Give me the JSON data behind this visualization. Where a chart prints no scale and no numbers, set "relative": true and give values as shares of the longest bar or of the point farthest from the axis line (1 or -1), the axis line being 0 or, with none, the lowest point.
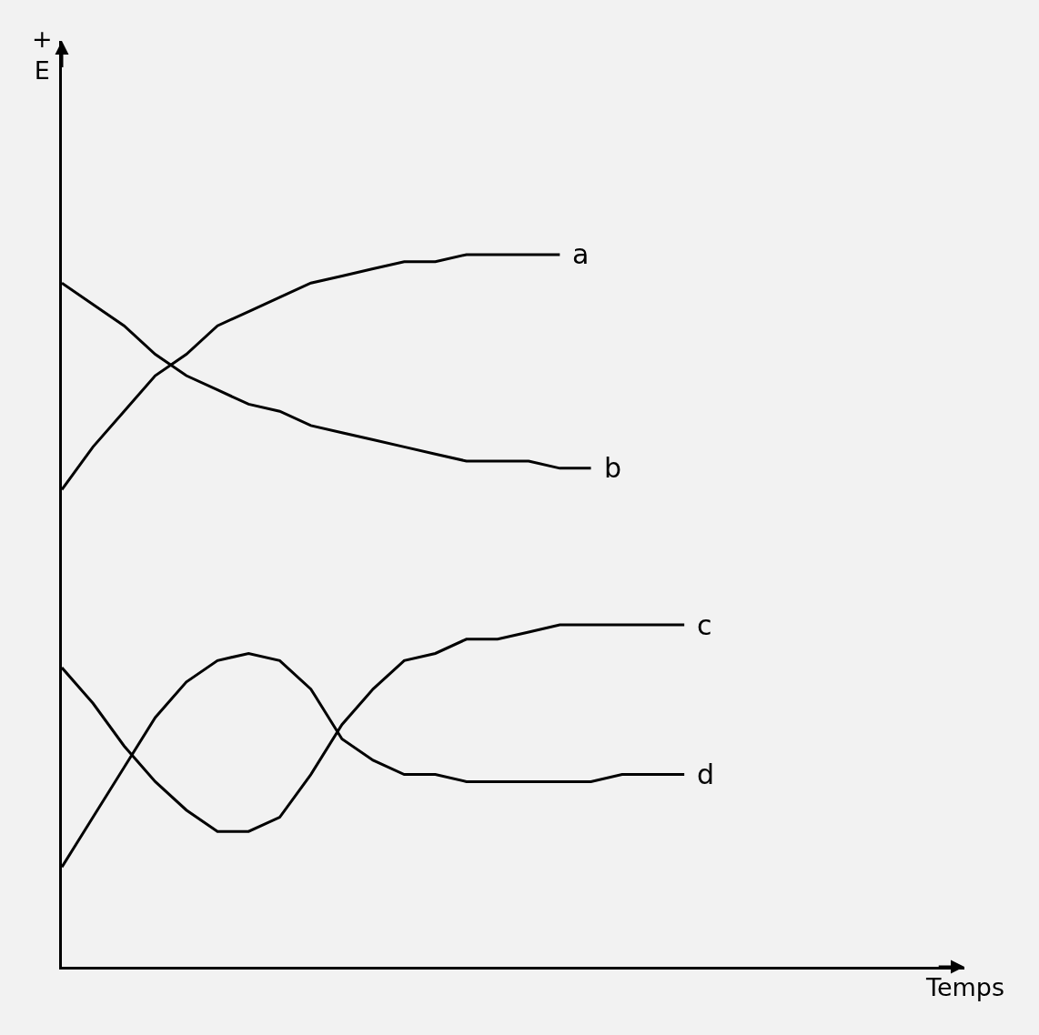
{
  "chart_data": {
    "type": "line",
    "relative": true,
    "annotations": [
      "+\nE",
      "Temps"
    ],
    "categories": [
      null,
      null,
      null,
      null,
      null,
      null,
      null,
      null,
      null,
      null,
      null,
      null,
      null,
      null,
      null,
      null,
      null,
      null,
      null,
      null,
      null
    ],
    "series": [
      {
        "name": "a",
        "color": "#000000",
        "values": [
          0.67,
          0.73,
          0.78,
          0.83,
          0.86,
          0.9,
          0.92,
          0.94,
          0.96,
          0.97,
          0.98,
          0.99,
          0.99,
          1,
          1,
          1,
          1,
          null,
          null,
          null,
          null
        ]
      },
      {
        "name": "b",
        "color": "#000000",
        "values": [
          0.96,
          0.93,
          0.9,
          0.86,
          0.83,
          0.81,
          0.79,
          0.78,
          0.76,
          0.75,
          0.74,
          0.73,
          0.72,
          0.71,
          0.71,
          0.71,
          0.7,
          0.7,
          null,
          null,
          null
        ]
      },
      {
        "name": "c",
        "color": "#000000",
        "values": [
          0.42,
          0.37,
          0.31,
          0.26,
          0.22,
          0.19,
          0.19,
          0.21,
          0.27,
          0.34,
          0.39,
          0.43,
          0.44,
          0.46,
          0.46,
          0.47,
          0.48,
          0.48,
          0.48,
          0.48,
          0.48
        ]
      },
      {
        "name": "d",
        "color": "#000000",
        "values": [
          0.14,
          0.21,
          0.28,
          0.35,
          0.4,
          0.43,
          0.44,
          0.43,
          0.39,
          0.32,
          0.29,
          0.27,
          0.27,
          0.26,
          0.26,
          0.26,
          0.26,
          0.26,
          0.27,
          0.27,
          0.27
        ]
      }
    ],
    "grid": false,
    "legend": false,
    "marker": "none",
    "line_style": "solid"
  }
}
